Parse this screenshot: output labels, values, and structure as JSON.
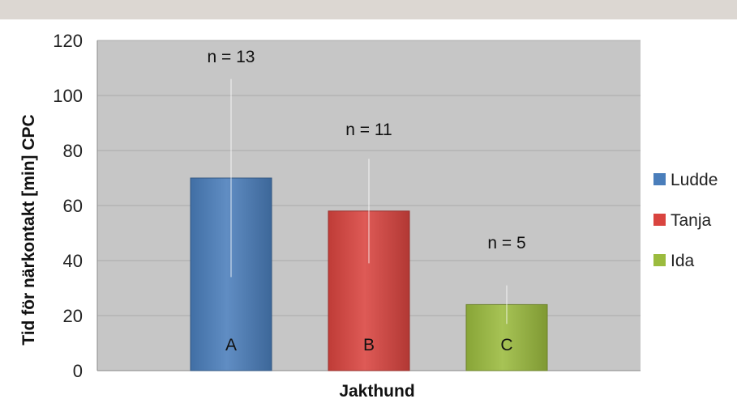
{
  "chart_data": {
    "type": "bar",
    "categories": [
      "Ludde",
      "Tanja",
      "Ida"
    ],
    "values": [
      70,
      58,
      24
    ],
    "error_bars": [
      {
        "low": 34,
        "high": 106
      },
      {
        "low": 39,
        "high": 77
      },
      {
        "low": 17,
        "high": 31
      }
    ],
    "sample_labels": [
      "n = 13",
      "n = 11",
      "n = 5"
    ],
    "bar_letters": [
      "A",
      "B",
      "C"
    ],
    "colors": [
      "#4a7ebb",
      "#d9443f",
      "#9bbb3e"
    ],
    "xlabel": "Jakthund",
    "ylabel": "Tid för närkontakt [min]  CPC",
    "ylim": [
      0,
      120
    ],
    "yticks": [
      0,
      20,
      40,
      60,
      80,
      100,
      120
    ],
    "grid": true,
    "plot_background": "#c6c6c6",
    "legend_position": "right"
  }
}
